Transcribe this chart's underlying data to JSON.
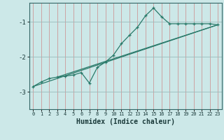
{
  "xlabel": "Humidex (Indice chaleur)",
  "bg_color": "#cce8e8",
  "line_color": "#2a7a6a",
  "grid_color_x": "#cc9999",
  "grid_color_y": "#99bbbb",
  "xlim": [
    -0.5,
    23.5
  ],
  "ylim": [
    -3.5,
    -0.45
  ],
  "yticks": [
    -3,
    -2,
    -1
  ],
  "xticks": [
    0,
    1,
    2,
    3,
    4,
    5,
    6,
    7,
    8,
    9,
    10,
    11,
    12,
    13,
    14,
    15,
    16,
    17,
    18,
    19,
    20,
    21,
    22,
    23
  ],
  "curve_x": [
    0,
    1,
    2,
    3,
    4,
    5,
    6,
    7,
    8,
    9,
    10,
    11,
    12,
    13,
    14,
    15,
    16,
    17,
    18,
    19,
    20,
    21,
    22,
    23
  ],
  "curve_y": [
    -2.85,
    -2.72,
    -2.62,
    -2.58,
    -2.55,
    -2.52,
    -2.45,
    -2.75,
    -2.3,
    -2.15,
    -1.95,
    -1.62,
    -1.38,
    -1.15,
    -0.82,
    -0.6,
    -0.85,
    -1.05,
    -1.05,
    -1.05,
    -1.05,
    -1.05,
    -1.05,
    -1.08
  ],
  "line1_x": [
    0,
    23
  ],
  "line1_y": [
    -2.85,
    -1.08
  ],
  "line2_x": [
    3,
    23
  ],
  "line2_y": [
    -2.58,
    -1.08
  ]
}
